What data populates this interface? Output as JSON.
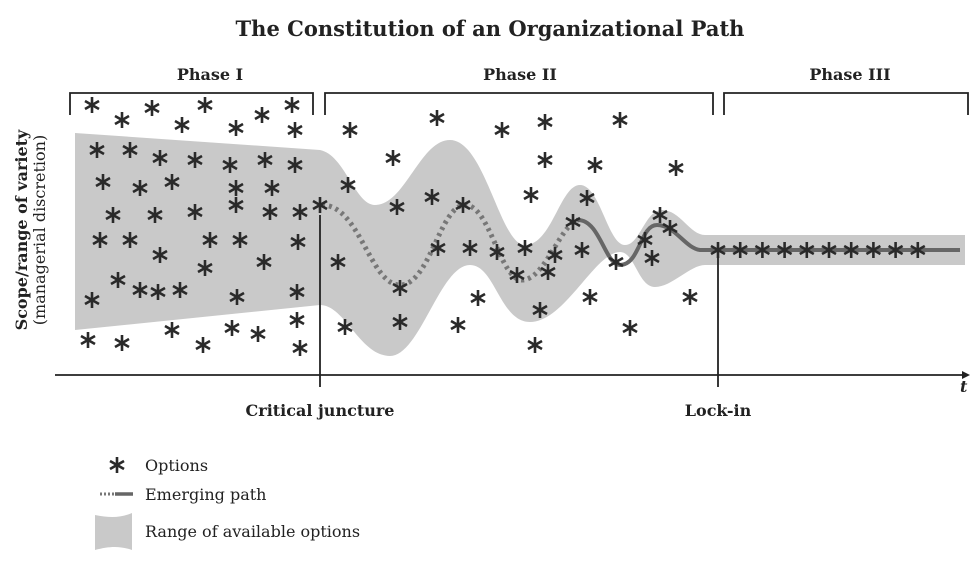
{
  "title": "The Constitution of an Organizational Path",
  "phases": [
    "Phase I",
    "Phase II",
    "Phase III"
  ],
  "y_axis": {
    "label": "Scope/range of variety",
    "sublabel": "(managerial discretion)"
  },
  "x_axis": {
    "label": "t",
    "markers": [
      "Critical juncture",
      "Lock-in"
    ]
  },
  "legend": [
    "Options",
    "Emerging path",
    "Range of available options"
  ]
}
